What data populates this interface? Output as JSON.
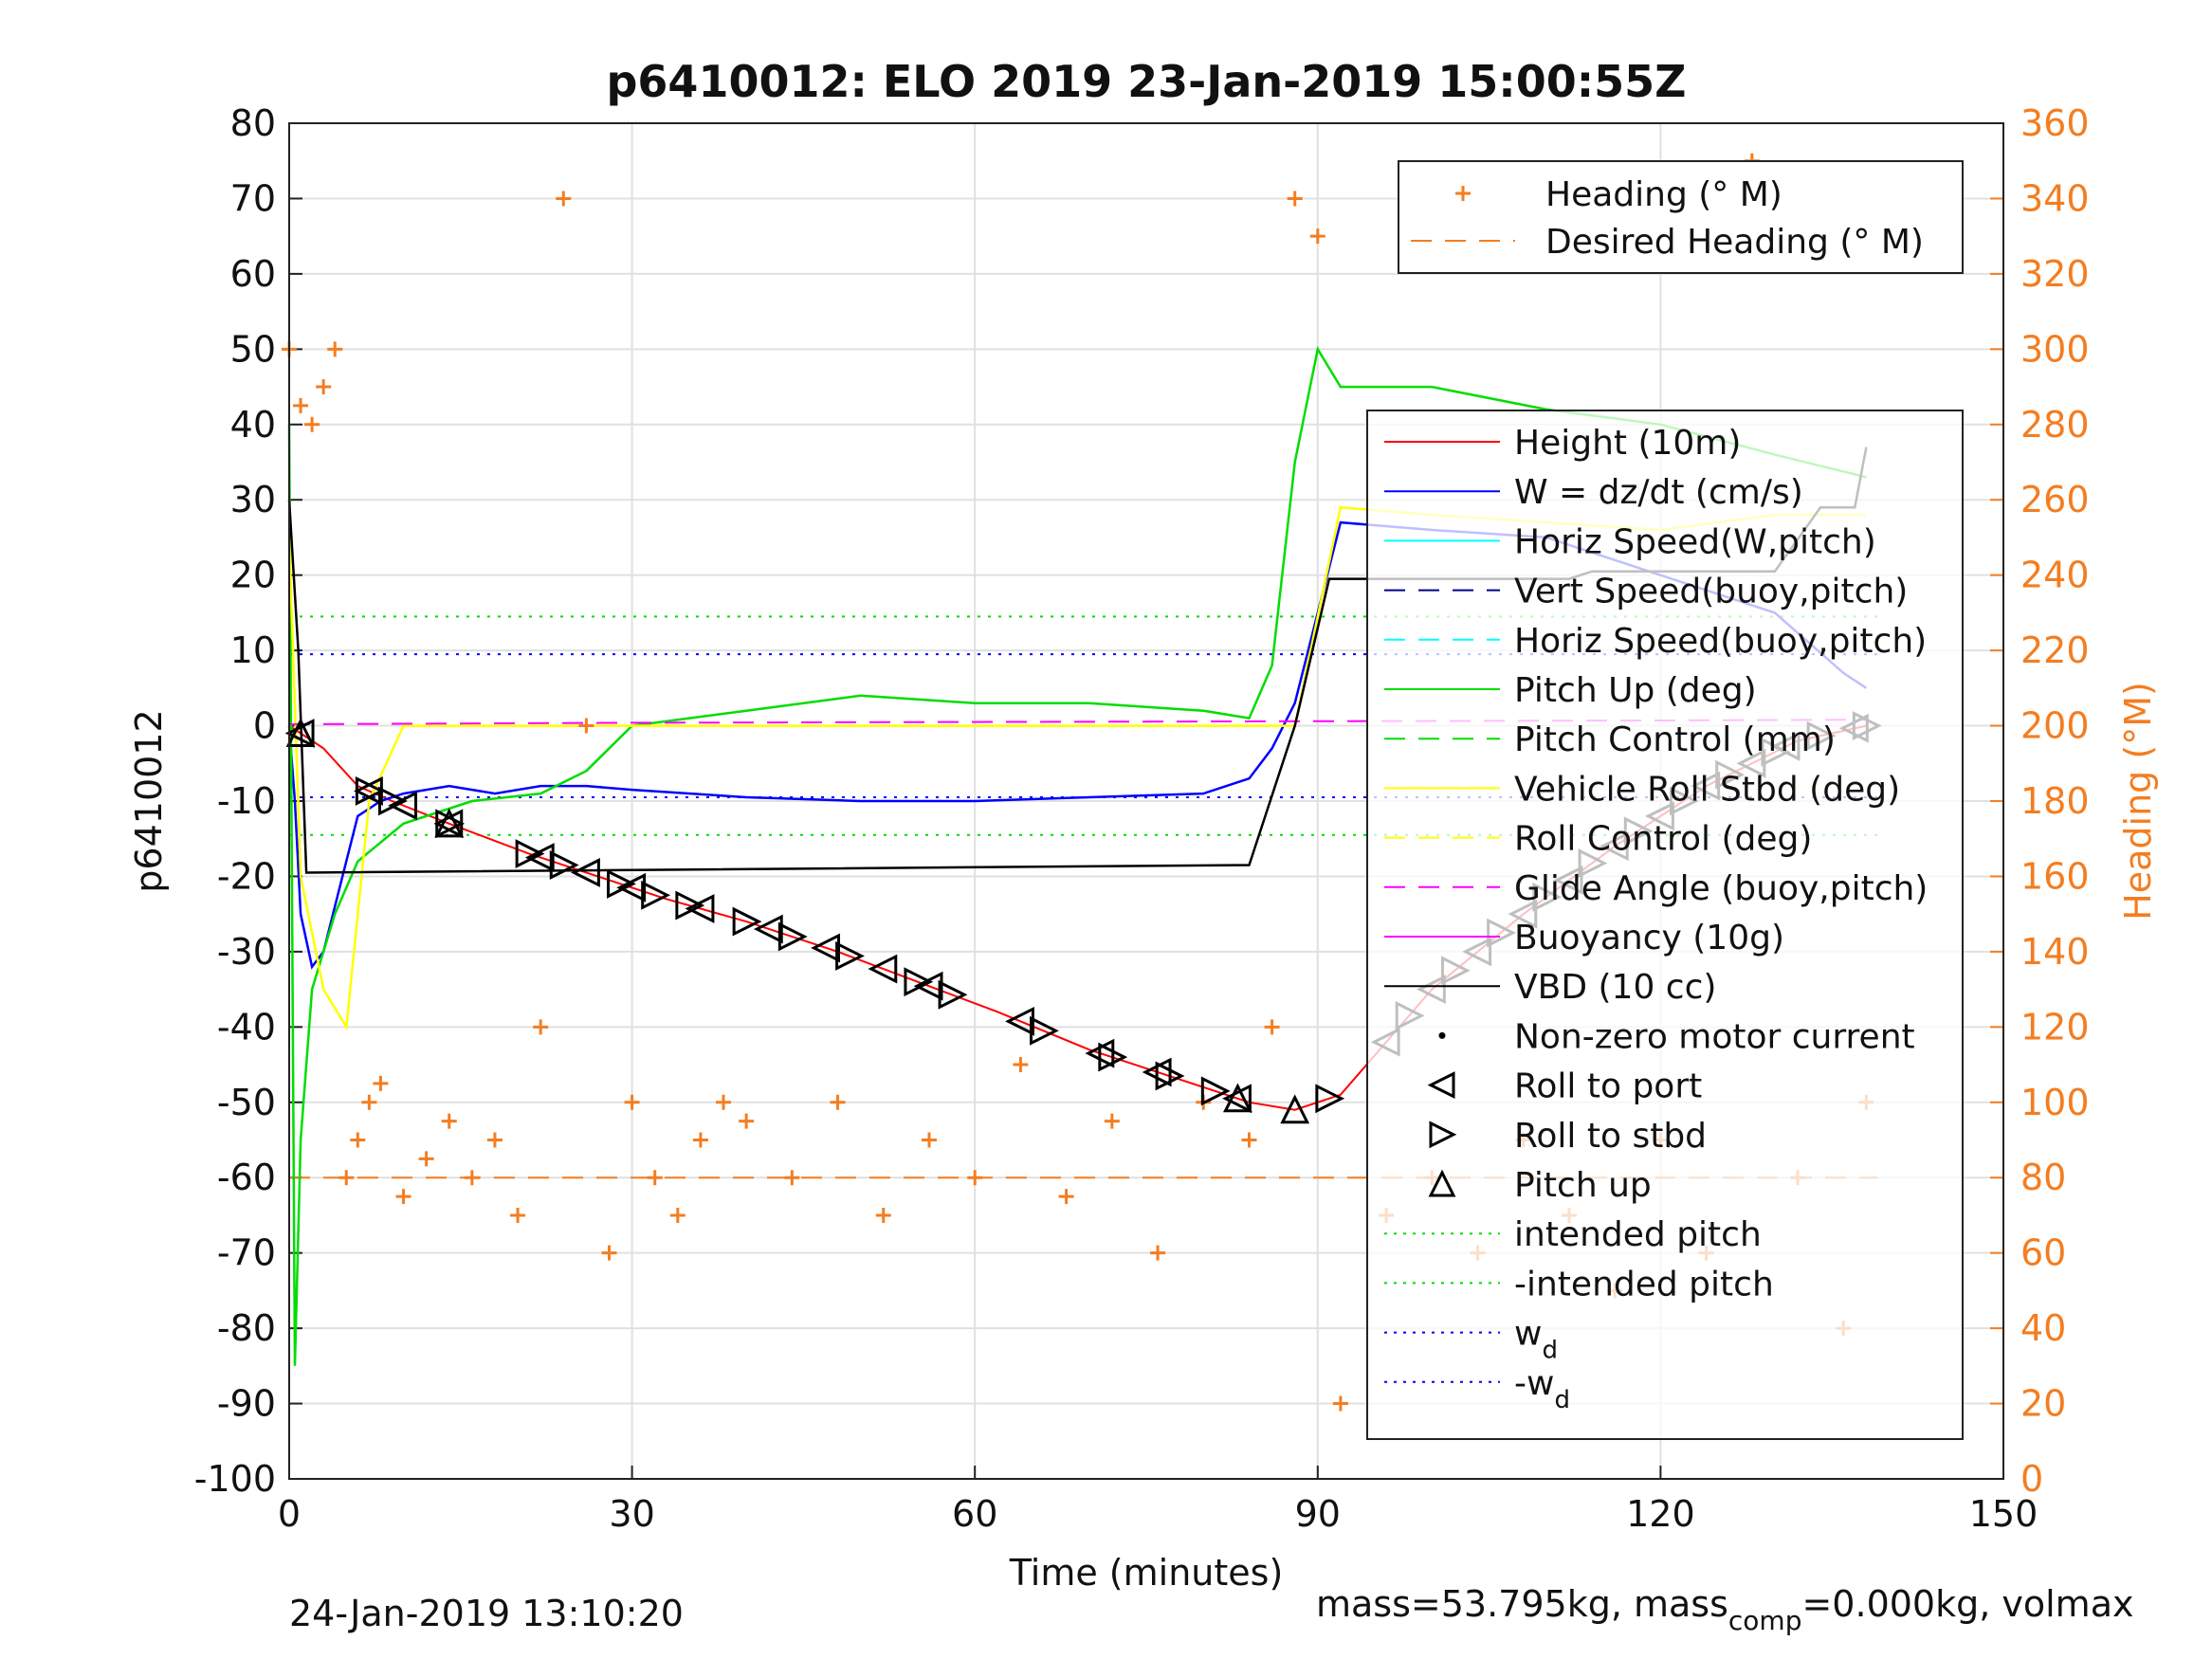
{
  "chart_data": {
    "type": "line",
    "title": "p6410012: ELO 2019 23-Jan-2019 15:00:55Z",
    "xlabel": "Time (minutes)",
    "ylabel_left": "p6410012",
    "ylabel_right": "Heading (°M)",
    "xlim": [
      0,
      150
    ],
    "ylim_left": [
      -100,
      80
    ],
    "ylim_right": [
      0,
      360
    ],
    "x_ticks": [
      "0",
      "30",
      "60",
      "90",
      "120",
      "150"
    ],
    "y_ticks_left": [
      "80",
      "70",
      "60",
      "50",
      "40",
      "30",
      "20",
      "10",
      "0",
      "-10",
      "-20",
      "-30",
      "-40",
      "-50",
      "-60",
      "-70",
      "-80",
      "-90",
      "-100"
    ],
    "y_ticks_right": [
      "360",
      "340",
      "320",
      "300",
      "280",
      "260",
      "240",
      "220",
      "200",
      "180",
      "160",
      "140",
      "120",
      "100",
      "80",
      "60",
      "40",
      "20",
      "0"
    ],
    "grid": true,
    "legend_heading": [
      {
        "label": "Heading (° M)",
        "color": "#f47d20",
        "style": "plus"
      },
      {
        "label": "Desired Heading (° M)",
        "color": "#f47d20",
        "style": "dashed"
      }
    ],
    "legend_main": [
      {
        "label": "Height (10m)",
        "color": "#ff0000",
        "style": "solid"
      },
      {
        "label": "W = dz/dt (cm/s)",
        "color": "#0000ff",
        "style": "solid"
      },
      {
        "label": "Horiz Speed(W,pitch)",
        "color": "#00ffff",
        "style": "solid"
      },
      {
        "label": "Vert Speed(buoy,pitch)",
        "color": "#00008b",
        "style": "dashed"
      },
      {
        "label": "Horiz Speed(buoy,pitch)",
        "color": "#00ffff",
        "style": "dashed"
      },
      {
        "label": "Pitch Up (deg)",
        "color": "#00dd00",
        "style": "solid"
      },
      {
        "label": "Pitch Control (mm)",
        "color": "#00dd00",
        "style": "dashed"
      },
      {
        "label": "Vehicle Roll Stbd (deg)",
        "color": "#ffff00",
        "style": "solid"
      },
      {
        "label": "Roll Control (deg)",
        "color": "#ffff00",
        "style": "dashed"
      },
      {
        "label": "Glide Angle (buoy,pitch)",
        "color": "#ff00ff",
        "style": "dashed"
      },
      {
        "label": "Buoyancy (10g)",
        "color": "#ff00ff",
        "style": "solid"
      },
      {
        "label": "VBD (10 cc)",
        "color": "#000000",
        "style": "solid"
      },
      {
        "label": "Non-zero motor current",
        "color": "#000000",
        "style": "dot"
      },
      {
        "label": "Roll to port",
        "color": "#000000",
        "style": "tri-left"
      },
      {
        "label": "Roll to stbd",
        "color": "#000000",
        "style": "tri-right"
      },
      {
        "label": "Pitch up",
        "color": "#000000",
        "style": "tri-up"
      },
      {
        "label": "intended pitch",
        "color": "#00dd00",
        "style": "dotted"
      },
      {
        "label": "-intended pitch",
        "color": "#00dd00",
        "style": "dotted"
      },
      {
        "label": "w",
        "sub": "d",
        "color": "#0000ff",
        "style": "dotted"
      },
      {
        "label": "-w",
        "sub": "d",
        "color": "#0000ff",
        "style": "dotted"
      }
    ],
    "reference_lines": [
      {
        "name": "intended pitch",
        "y": 14.5
      },
      {
        "name": "-intended pitch",
        "y": -14.5
      },
      {
        "name": "w_d",
        "y": 9.5
      },
      {
        "name": "-w_d",
        "y": -9.5
      },
      {
        "name": "Desired Heading",
        "y_right": 80
      }
    ],
    "series": [
      {
        "name": "Height (10m)",
        "x": [
          0,
          1,
          3,
          6,
          9,
          14,
          21,
          27,
          33,
          40,
          48,
          55,
          62,
          70,
          78,
          84,
          88,
          92,
          100,
          108,
          116,
          124,
          132,
          138
        ],
        "y": [
          0,
          -1,
          -3,
          -8,
          -10,
          -13,
          -17,
          -20,
          -23,
          -26,
          -30,
          -34,
          -38,
          -43,
          -47,
          -50,
          -51,
          -49,
          -35,
          -25,
          -16,
          -8,
          -2,
          0
        ]
      },
      {
        "name": "W = dz/dt (cm/s)",
        "x": [
          0,
          0.5,
          1,
          2,
          3,
          4,
          6,
          8,
          10,
          14,
          18,
          22,
          26,
          30,
          40,
          50,
          60,
          70,
          80,
          84,
          86,
          88,
          90,
          92,
          100,
          110,
          120,
          130,
          136,
          138
        ],
        "y": [
          0,
          -10,
          -25,
          -32,
          -30,
          -24,
          -12,
          -10,
          -9,
          -8,
          -9,
          -8,
          -8,
          -8.5,
          -9.5,
          -10,
          -10,
          -9.5,
          -9,
          -7,
          -3,
          3,
          15,
          27,
          26,
          25,
          20,
          15,
          7,
          5
        ]
      },
      {
        "name": "Pitch Up (deg)",
        "x": [
          0,
          0.5,
          1,
          2,
          4,
          6,
          10,
          16,
          22,
          26,
          30,
          40,
          50,
          60,
          70,
          80,
          84,
          86,
          88,
          90,
          92,
          100,
          110,
          120,
          130,
          138
        ],
        "y": [
          40,
          -85,
          -55,
          -35,
          -25,
          -18,
          -13,
          -10,
          -9,
          -6,
          0,
          2,
          4,
          3,
          3,
          2,
          1,
          8,
          35,
          50,
          45,
          45,
          42,
          40,
          36,
          33
        ]
      },
      {
        "name": "Vehicle Roll Stbd (deg)",
        "x": [
          0,
          1,
          3,
          5,
          7,
          10,
          20,
          28,
          40,
          50,
          60,
          70,
          80,
          85,
          88,
          92,
          100,
          110,
          120,
          130,
          138
        ],
        "y": [
          25,
          -20,
          -35,
          -40,
          -10,
          0,
          0,
          0,
          0,
          0,
          0,
          0,
          0,
          0,
          0,
          29,
          28,
          27,
          26,
          28,
          28
        ]
      },
      {
        "name": "Buoyancy (10g)",
        "x": [
          0,
          30,
          60,
          90,
          120,
          138
        ],
        "y": [
          0.2,
          0.4,
          0.5,
          0.6,
          0.7,
          0.8
        ]
      },
      {
        "name": "VBD (10 cc)",
        "x": [
          0,
          0.8,
          1.5,
          84,
          88,
          91,
          112,
          114,
          130,
          134,
          137,
          138
        ],
        "y": [
          30,
          10,
          -19.5,
          -18.5,
          0,
          19.5,
          19.5,
          20.5,
          20.5,
          29,
          29,
          37
        ]
      },
      {
        "name": "Heading (° M)",
        "x": [
          0,
          1,
          2,
          3,
          4,
          5,
          6,
          7,
          8,
          10,
          12,
          14,
          16,
          18,
          20,
          22,
          24,
          26,
          28,
          30,
          32,
          34,
          36,
          38,
          40,
          44,
          48,
          52,
          56,
          60,
          64,
          68,
          72,
          76,
          80,
          84,
          86,
          88,
          90,
          92,
          96,
          100,
          104,
          108,
          112,
          116,
          120,
          124,
          128,
          132,
          136,
          138
        ],
        "y": [
          300,
          285,
          280,
          290,
          300,
          80,
          90,
          100,
          105,
          75,
          85,
          95,
          80,
          90,
          70,
          120,
          340,
          200,
          60,
          100,
          80,
          70,
          90,
          100,
          95,
          80,
          100,
          70,
          90,
          80,
          110,
          75,
          95,
          60,
          100,
          90,
          120,
          340,
          330,
          20,
          70,
          80,
          60,
          90,
          70,
          50,
          90,
          60,
          350,
          80,
          40,
          100
        ]
      }
    ],
    "markers": {
      "roll_to_port_x": [
        1,
        7,
        10,
        14,
        22,
        26,
        30,
        36,
        42,
        47,
        52,
        56,
        64,
        71,
        76,
        83,
        96,
        100,
        104,
        108,
        112,
        116,
        120,
        124,
        128,
        131,
        137
      ],
      "roll_to_stbd_x": [
        7,
        9,
        14,
        21,
        24,
        29,
        32,
        35,
        40,
        44,
        49,
        55,
        58,
        66,
        72,
        77,
        81,
        91,
        98,
        102,
        106,
        110,
        114,
        118,
        122,
        126,
        130,
        134,
        138
      ],
      "pitch_up_x": [
        1,
        14,
        83,
        88
      ]
    },
    "footer_left": "24-Jan-2019 13:10:20",
    "footer_right_a": "mass=53.795kg, mass",
    "footer_right_sub": "comp",
    "footer_right_b": "=0.000kg, volmax"
  }
}
